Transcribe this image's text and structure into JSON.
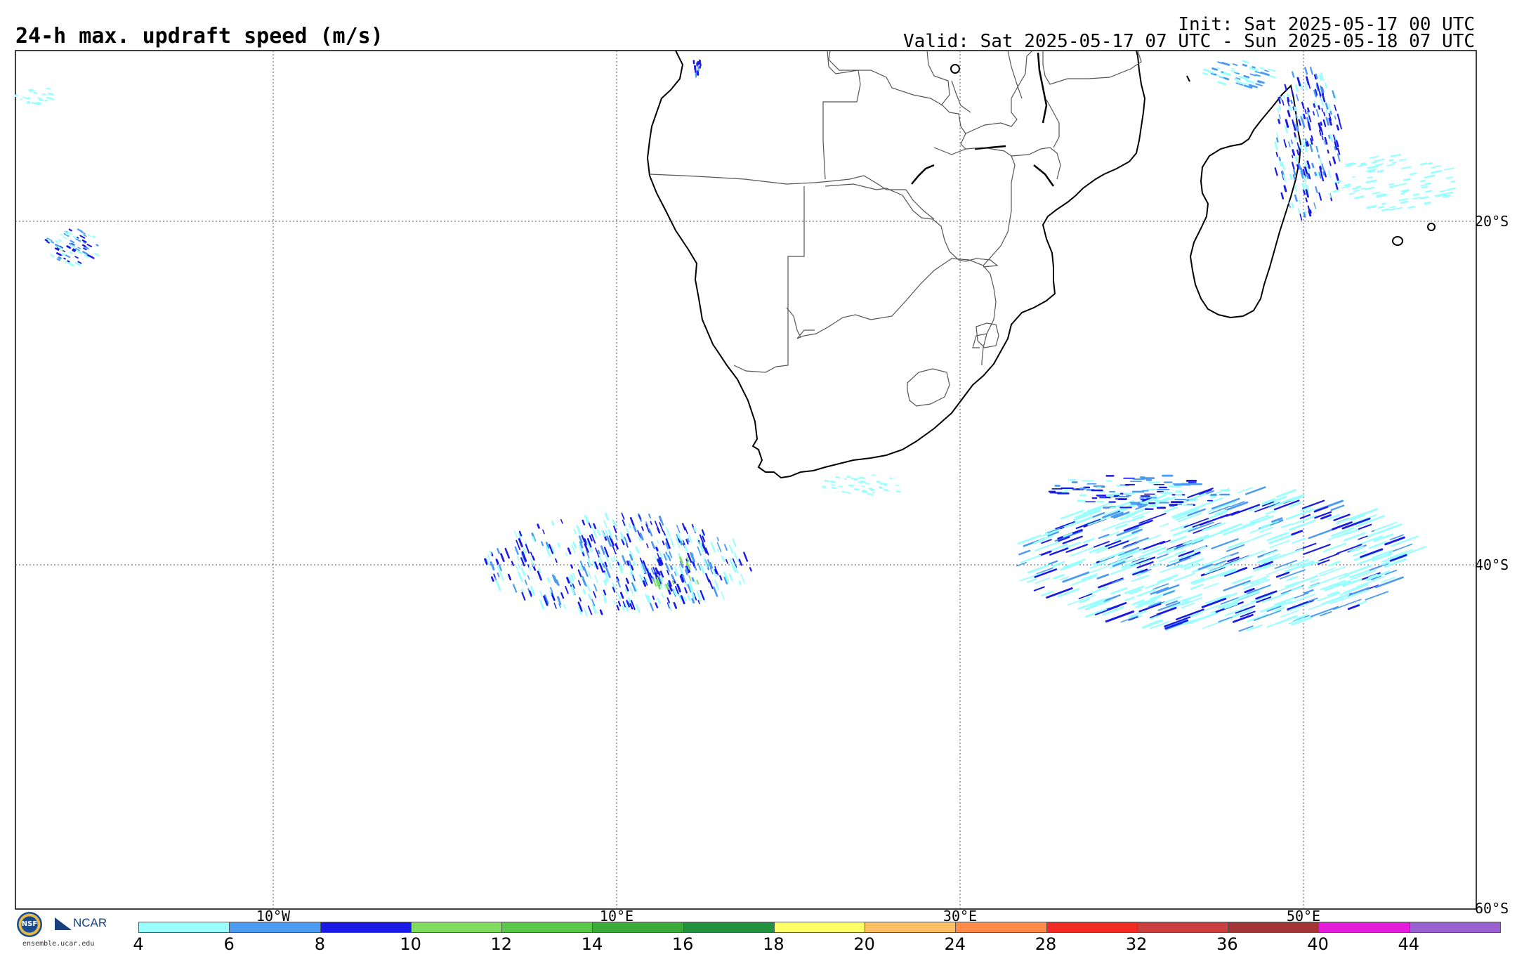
{
  "header": {
    "title": "24-h max. updraft speed (m/s)",
    "init": "Init: Sat 2025-05-17 00 UTC",
    "valid": "Valid: Sat 2025-05-17 07 UTC - Sun 2025-05-18 07 UTC"
  },
  "map": {
    "lon_labels": [
      "10°W",
      "10°E",
      "30°E",
      "50°E"
    ],
    "lat_labels": [
      "20°S",
      "40°S",
      "60°S"
    ],
    "background": "#ffffff",
    "coast_color": "#000000",
    "border_color": "#555555"
  },
  "colorbar": {
    "ticks": [
      "4",
      "6",
      "8",
      "10",
      "12",
      "14",
      "16",
      "18",
      "20",
      "24",
      "28",
      "32",
      "36",
      "40",
      "44"
    ],
    "colors": [
      "#99ffff",
      "#4c9bf2",
      "#1a1ae8",
      "#80dd60",
      "#58c848",
      "#3aaa3a",
      "#229140",
      "#ffff66",
      "#ffc063",
      "#ff8a4a",
      "#f42a25",
      "#c9403f",
      "#a23434",
      "#e51dda",
      "#9a62d0"
    ]
  },
  "footer": {
    "nsf": "NSF",
    "ncar": "NCAR",
    "url": "ensemble.ucar.edu"
  }
}
